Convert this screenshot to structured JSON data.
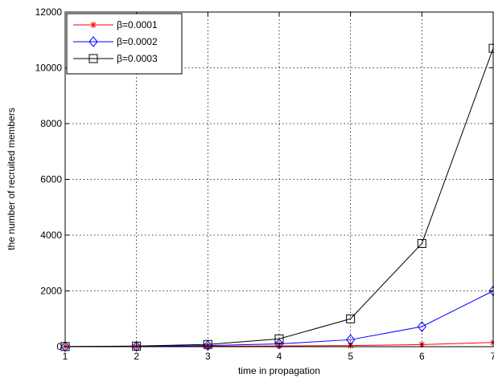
{
  "chart_data": {
    "type": "line",
    "title": "",
    "xlabel": "time in propagation",
    "ylabel": "the number of recruited members",
    "xlim": [
      1,
      7
    ],
    "ylim": [
      0,
      12000
    ],
    "xticks": [
      1,
      2,
      3,
      4,
      5,
      6,
      7
    ],
    "yticks": [
      0,
      2000,
      4000,
      6000,
      8000,
      10000,
      12000
    ],
    "grid": true,
    "legend_position": "top-left",
    "x": [
      1,
      2,
      3,
      4,
      5,
      6,
      7
    ],
    "series": [
      {
        "name": "β=0.0001",
        "color": "#ff0000",
        "marker": "star",
        "values": [
          5,
          8,
          15,
          25,
          40,
          75,
          150
        ]
      },
      {
        "name": "β=0.0002",
        "color": "#0000ff",
        "marker": "diamond",
        "values": [
          5,
          10,
          40,
          100,
          250,
          720,
          2000
        ]
      },
      {
        "name": "β=0.0003",
        "color": "#000000",
        "marker": "square",
        "values": [
          5,
          20,
          80,
          280,
          1000,
          3700,
          10700
        ]
      }
    ]
  }
}
